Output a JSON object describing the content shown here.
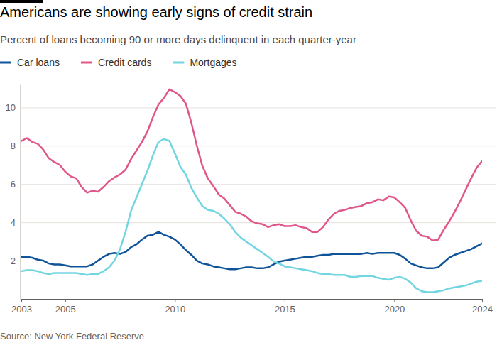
{
  "chart_data": {
    "type": "line",
    "title": "Americans are showing early signs of credit strain",
    "subtitle": "Percent of loans becoming 90 or more days delinquent in each quarter-year",
    "source": "Source: New York Federal Reserve",
    "x": [
      2003,
      2003.25,
      2003.5,
      2003.75,
      2004,
      2004.25,
      2004.5,
      2004.75,
      2005,
      2005.25,
      2005.5,
      2005.75,
      2006,
      2006.25,
      2006.5,
      2006.75,
      2007,
      2007.25,
      2007.5,
      2007.75,
      2008,
      2008.25,
      2008.5,
      2008.75,
      2009,
      2009.25,
      2009.5,
      2009.75,
      2010,
      2010.25,
      2010.5,
      2010.75,
      2011,
      2011.25,
      2011.5,
      2011.75,
      2012,
      2012.25,
      2012.5,
      2012.75,
      2013,
      2013.25,
      2013.5,
      2013.75,
      2014,
      2014.25,
      2014.5,
      2014.75,
      2015,
      2015.25,
      2015.5,
      2015.75,
      2016,
      2016.25,
      2016.5,
      2016.75,
      2017,
      2017.25,
      2017.5,
      2017.75,
      2018,
      2018.25,
      2018.5,
      2018.75,
      2019,
      2019.25,
      2019.5,
      2019.75,
      2020,
      2020.25,
      2020.5,
      2020.75,
      2021,
      2021.25,
      2021.5,
      2021.75,
      2022,
      2022.25,
      2022.5,
      2022.75,
      2023,
      2023.25,
      2023.5,
      2023.75,
      2024
    ],
    "series": [
      {
        "name": "Car loans",
        "color": "#0f5499",
        "values": [
          2.2,
          2.2,
          2.15,
          2.05,
          2.0,
          1.85,
          1.8,
          1.8,
          1.75,
          1.7,
          1.7,
          1.7,
          1.7,
          1.8,
          2.0,
          2.2,
          2.35,
          2.4,
          2.35,
          2.45,
          2.7,
          2.85,
          3.1,
          3.3,
          3.35,
          3.5,
          3.35,
          3.25,
          3.1,
          2.85,
          2.55,
          2.3,
          2.0,
          1.85,
          1.8,
          1.7,
          1.65,
          1.6,
          1.55,
          1.55,
          1.6,
          1.65,
          1.65,
          1.6,
          1.6,
          1.65,
          1.8,
          1.95,
          2.0,
          2.05,
          2.1,
          2.15,
          2.2,
          2.2,
          2.25,
          2.3,
          2.3,
          2.35,
          2.35,
          2.35,
          2.35,
          2.35,
          2.35,
          2.4,
          2.35,
          2.4,
          2.4,
          2.4,
          2.4,
          2.3,
          2.1,
          1.85,
          1.75,
          1.65,
          1.6,
          1.6,
          1.65,
          1.9,
          2.15,
          2.3,
          2.4,
          2.5,
          2.6,
          2.75,
          2.9
        ]
      },
      {
        "name": "Credit cards",
        "color": "#e0568a",
        "values": [
          8.25,
          8.4,
          8.2,
          8.1,
          7.8,
          7.35,
          7.15,
          7.0,
          6.65,
          6.4,
          6.3,
          5.85,
          5.55,
          5.65,
          5.6,
          5.85,
          6.15,
          6.35,
          6.5,
          6.75,
          7.3,
          7.75,
          8.2,
          8.75,
          9.5,
          10.15,
          10.5,
          10.95,
          10.8,
          10.6,
          10.2,
          9.2,
          8.0,
          6.95,
          6.3,
          5.9,
          5.45,
          5.25,
          4.9,
          4.55,
          4.45,
          4.3,
          4.05,
          3.95,
          3.9,
          3.75,
          3.85,
          3.9,
          3.8,
          3.8,
          3.85,
          3.75,
          3.7,
          3.5,
          3.5,
          3.75,
          4.15,
          4.45,
          4.6,
          4.65,
          4.75,
          4.8,
          4.85,
          5.0,
          5.05,
          5.2,
          5.15,
          5.35,
          5.3,
          5.05,
          4.75,
          4.1,
          3.55,
          3.3,
          3.25,
          3.05,
          3.1,
          3.6,
          4.05,
          4.55,
          5.1,
          5.7,
          6.3,
          6.85,
          7.2
        ]
      },
      {
        "name": "Mortgages",
        "color": "#72d5e2",
        "values": [
          1.45,
          1.5,
          1.5,
          1.45,
          1.35,
          1.3,
          1.35,
          1.35,
          1.35,
          1.35,
          1.35,
          1.3,
          1.25,
          1.3,
          1.3,
          1.45,
          1.65,
          2.0,
          2.6,
          3.5,
          4.6,
          5.3,
          6.0,
          6.7,
          7.5,
          8.2,
          8.35,
          8.25,
          7.6,
          6.9,
          6.5,
          5.8,
          5.3,
          4.85,
          4.65,
          4.6,
          4.45,
          4.2,
          3.9,
          3.5,
          3.2,
          3.0,
          2.8,
          2.6,
          2.4,
          2.2,
          1.95,
          1.85,
          1.7,
          1.65,
          1.6,
          1.55,
          1.5,
          1.45,
          1.35,
          1.3,
          1.3,
          1.25,
          1.25,
          1.25,
          1.15,
          1.15,
          1.2,
          1.2,
          1.2,
          1.1,
          1.05,
          1.0,
          1.1,
          1.15,
          1.05,
          0.85,
          0.55,
          0.4,
          0.35,
          0.35,
          0.4,
          0.45,
          0.55,
          0.6,
          0.65,
          0.7,
          0.8,
          0.9,
          0.95
        ]
      }
    ],
    "xlim": [
      2003,
      2024
    ],
    "xticks": [
      2003,
      2005,
      2010,
      2015,
      2020,
      2024
    ],
    "ylim": [
      0,
      11.2
    ],
    "yticks": [
      2,
      4,
      6,
      8,
      10
    ],
    "grid": true,
    "legend": "top"
  }
}
